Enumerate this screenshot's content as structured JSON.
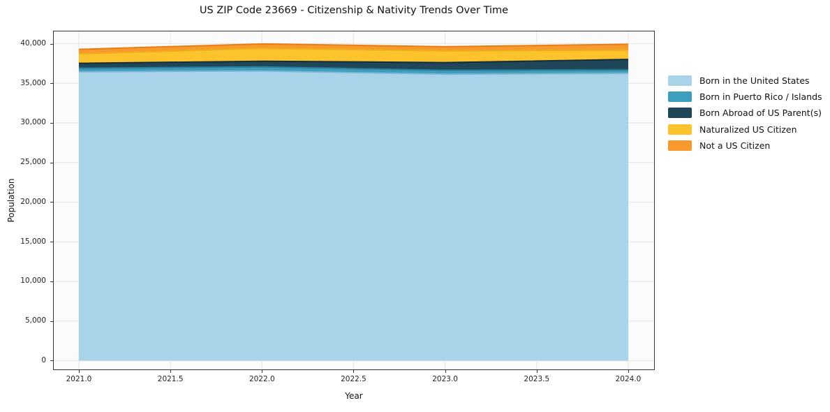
{
  "chart_data": {
    "type": "area",
    "stacked": true,
    "title": "US ZIP Code 23669 - Citizenship & Nativity Trends Over Time",
    "xlabel": "Year",
    "ylabel": "Population",
    "grid": true,
    "legend_position": "right-outside",
    "x": [
      2021,
      2022,
      2023,
      2024
    ],
    "xlim": [
      2020.859,
      2024.145
    ],
    "ylim": [
      -1190,
      41630
    ],
    "x_ticks": [
      {
        "v": 2021.0,
        "label": "2021.0"
      },
      {
        "v": 2021.5,
        "label": "2021.5"
      },
      {
        "v": 2022.0,
        "label": "2022.0"
      },
      {
        "v": 2022.5,
        "label": "2022.5"
      },
      {
        "v": 2023.0,
        "label": "2023.0"
      },
      {
        "v": 2023.5,
        "label": "2023.5"
      },
      {
        "v": 2024.0,
        "label": "2024.0"
      }
    ],
    "y_ticks": [
      {
        "v": 0,
        "label": "0"
      },
      {
        "v": 5000,
        "label": "5,000"
      },
      {
        "v": 10000,
        "label": "10,000"
      },
      {
        "v": 15000,
        "label": "15,000"
      },
      {
        "v": 20000,
        "label": "20,000"
      },
      {
        "v": 25000,
        "label": "25,000"
      },
      {
        "v": 30000,
        "label": "30,000"
      },
      {
        "v": 35000,
        "label": "35,000"
      },
      {
        "v": 40000,
        "label": "40,000"
      }
    ],
    "series": [
      {
        "name": "Born in the United States",
        "color": "#a8d3e8",
        "edge": "#7ab5d3",
        "values": [
          36450,
          36550,
          36150,
          36250
        ]
      },
      {
        "name": "Born in Puerto Rico / Islands",
        "color": "#3d9fbd",
        "edge": "#2c7e99",
        "values": [
          450,
          520,
          490,
          440
        ]
      },
      {
        "name": "Born Abroad of US Parent(s)",
        "color": "#1f4759",
        "edge": "#132d3a",
        "values": [
          620,
          710,
          970,
          1320
        ]
      },
      {
        "name": "Naturalized US Citizen",
        "color": "#fdc32d",
        "edge": "#edb01a",
        "values": [
          1190,
          1620,
          1470,
          1170
        ]
      },
      {
        "name": "Not a US Citizen",
        "color": "#f8992e",
        "edge": "#e87e12",
        "values": [
          570,
          570,
          530,
          740
        ]
      }
    ],
    "colors": {
      "plot_background": "#fbfbfb",
      "figure_background": "#ffffff",
      "gridline": "#e6e6e6",
      "spine": "#333333",
      "text": "#111111"
    }
  }
}
